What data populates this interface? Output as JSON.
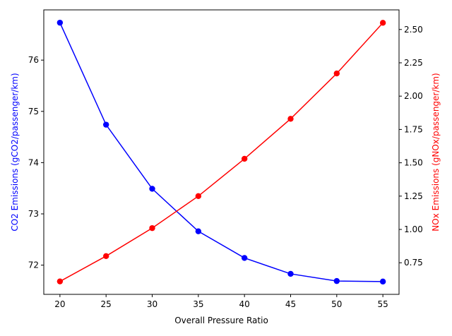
{
  "chart_data": {
    "type": "line",
    "xlabel": "Overall Pressure Ratio",
    "x": [
      20,
      25,
      30,
      35,
      40,
      45,
      50,
      55
    ],
    "xlim": [
      18.25,
      56.75
    ],
    "xticks": [
      20,
      25,
      30,
      35,
      40,
      45,
      50,
      55
    ],
    "grid": false,
    "series": [
      {
        "axis": "left",
        "color": "#0000ff",
        "values": [
          76.73,
          74.74,
          73.49,
          72.66,
          72.14,
          71.83,
          71.69,
          71.68
        ]
      },
      {
        "axis": "right",
        "color": "#ff0000",
        "values": [
          0.61,
          0.8,
          1.01,
          1.25,
          1.53,
          1.83,
          2.17,
          2.55
        ]
      }
    ],
    "left_axis": {
      "label": "CO2 Emissions (gCO2/passenger/km)",
      "color": "#0000ff",
      "ylim": [
        71.43,
        76.98
      ],
      "ticks": [
        72,
        73,
        74,
        75,
        76
      ],
      "tick_labels": [
        "72",
        "73",
        "74",
        "75",
        "76"
      ]
    },
    "right_axis": {
      "label": "NOx Emissions (gNOx/passenger/km)",
      "color": "#ff0000",
      "ylim": [
        0.513,
        2.647
      ],
      "ticks": [
        0.75,
        1.0,
        1.25,
        1.5,
        1.75,
        2.0,
        2.25,
        2.5
      ],
      "tick_labels": [
        "0.75",
        "1.00",
        "1.25",
        "1.50",
        "1.75",
        "2.00",
        "2.25",
        "2.50"
      ]
    }
  }
}
